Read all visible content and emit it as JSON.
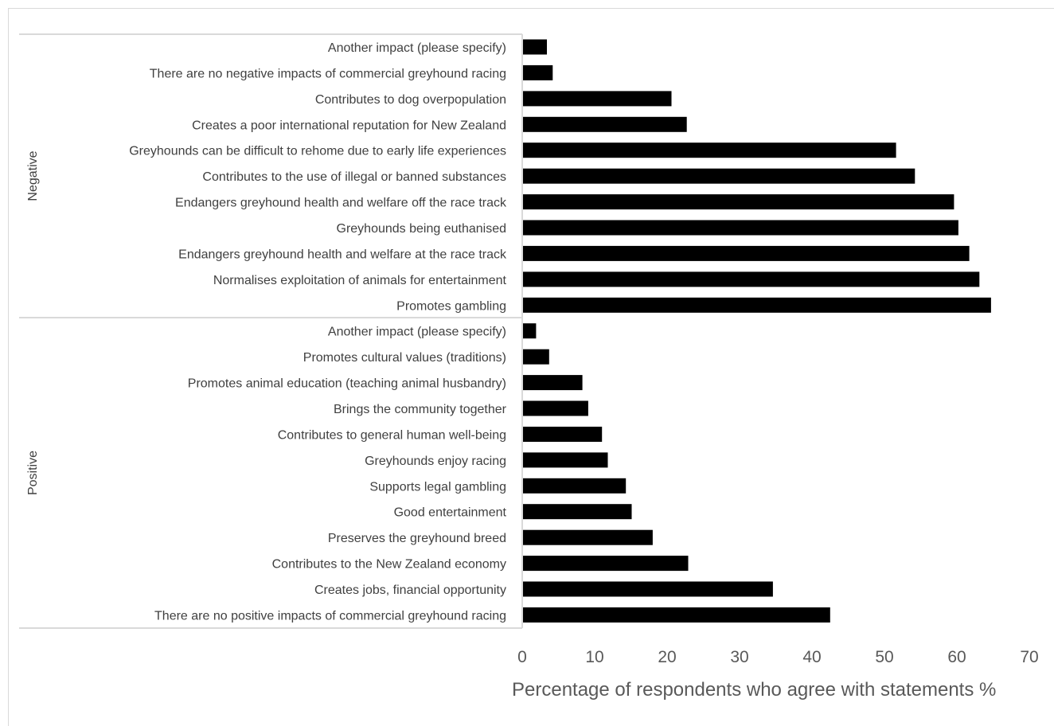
{
  "chart_data": {
    "type": "bar",
    "orientation": "horizontal",
    "xlabel": "Percentage of respondents who agree with statements %",
    "xlim": [
      0,
      70
    ],
    "xticks": [
      0,
      10,
      20,
      30,
      40,
      50,
      60,
      70
    ],
    "bar_color": "#000000",
    "grid": false,
    "groups": [
      {
        "name": "Negative",
        "categories": [
          "Another impact (please specify)",
          "There are no negative impacts of commercial greyhound racing",
          "Contributes to dog overpopulation",
          "Creates a poor international reputation for New Zealand",
          "Greyhounds can be difficult to rehome due to early life experiences",
          "Contributes to the use of illegal or banned substances",
          "Endangers greyhound health and welfare off the race track",
          "Greyhounds being euthanised",
          "Endangers greyhound health and welfare at the race track",
          "Normalises exploitation of animals for entertainment",
          "Promotes gambling"
        ],
        "values": [
          3.3,
          4.1,
          20.5,
          22.6,
          51.5,
          54.1,
          59.5,
          60.1,
          61.6,
          63.0,
          64.6
        ]
      },
      {
        "name": "Positive",
        "categories": [
          "Another impact (please specify)",
          "Promotes cultural values (traditions)",
          "Promotes animal education (teaching animal husbandry)",
          "Brings the community together",
          "Contributes to general human well-being",
          "Greyhounds enjoy racing",
          "Supports legal gambling",
          "Good entertainment",
          "Preserves the greyhound breed",
          "Contributes to the New Zealand economy",
          "Creates jobs, financial opportunity",
          "There are no positive impacts of commercial greyhound racing"
        ],
        "values": [
          1.8,
          3.6,
          8.2,
          9.0,
          10.9,
          11.7,
          14.2,
          15.0,
          17.9,
          22.8,
          34.5,
          42.4
        ]
      }
    ]
  }
}
